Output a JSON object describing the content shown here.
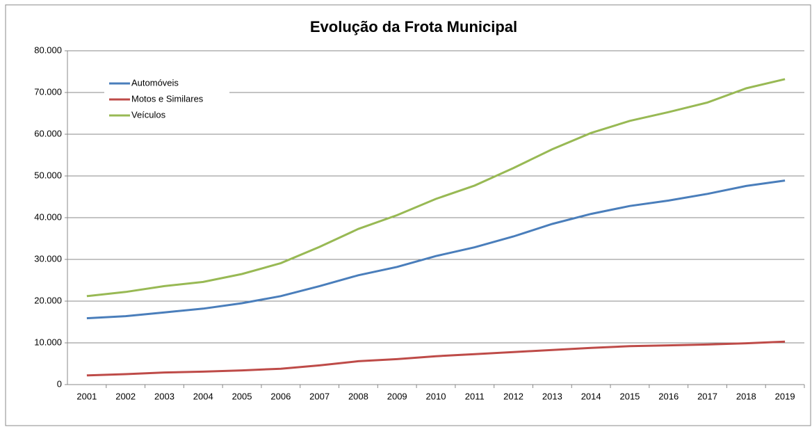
{
  "chart_data": {
    "type": "line",
    "title": "Evolução da Frota Municipal",
    "categories": [
      "2001",
      "2002",
      "2003",
      "2004",
      "2005",
      "2006",
      "2007",
      "2008",
      "2009",
      "2010",
      "2011",
      "2012",
      "2013",
      "2014",
      "2015",
      "2016",
      "2017",
      "2018",
      "2019"
    ],
    "series": [
      {
        "name": "Automóveis",
        "color": "#4a7ebb",
        "values": [
          15900,
          16400,
          17300,
          18200,
          19500,
          21200,
          23600,
          26200,
          28200,
          30800,
          32900,
          35500,
          38500,
          40900,
          42800,
          44100,
          45700,
          47600,
          48900
        ]
      },
      {
        "name": "Motos e Similares",
        "color": "#be4b48",
        "values": [
          2200,
          2500,
          2900,
          3100,
          3400,
          3800,
          4600,
          5600,
          6100,
          6800,
          7300,
          7800,
          8300,
          8800,
          9200,
          9400,
          9600,
          9900,
          10300
        ]
      },
      {
        "name": "Veículos",
        "color": "#98b954",
        "values": [
          21200,
          22200,
          23600,
          24600,
          26500,
          29100,
          33000,
          37300,
          40600,
          44500,
          47700,
          51900,
          56400,
          60300,
          63200,
          65300,
          67600,
          71000,
          73200
        ]
      }
    ],
    "ylim": [
      0,
      80000
    ],
    "yticks": [
      0,
      {
        "value": 10000,
        "label": "10.000"
      },
      {
        "value": 20000,
        "label": "20.000"
      },
      {
        "value": 30000,
        "label": "30.000"
      },
      {
        "value": 40000,
        "label": "40.000"
      },
      {
        "value": 50000,
        "label": "50.000"
      },
      {
        "value": 60000,
        "label": "60.000"
      },
      {
        "value": 70000,
        "label": "70.000"
      },
      {
        "value": 80000,
        "label": "80.000"
      }
    ],
    "grid": true,
    "legend": "upper-left"
  }
}
